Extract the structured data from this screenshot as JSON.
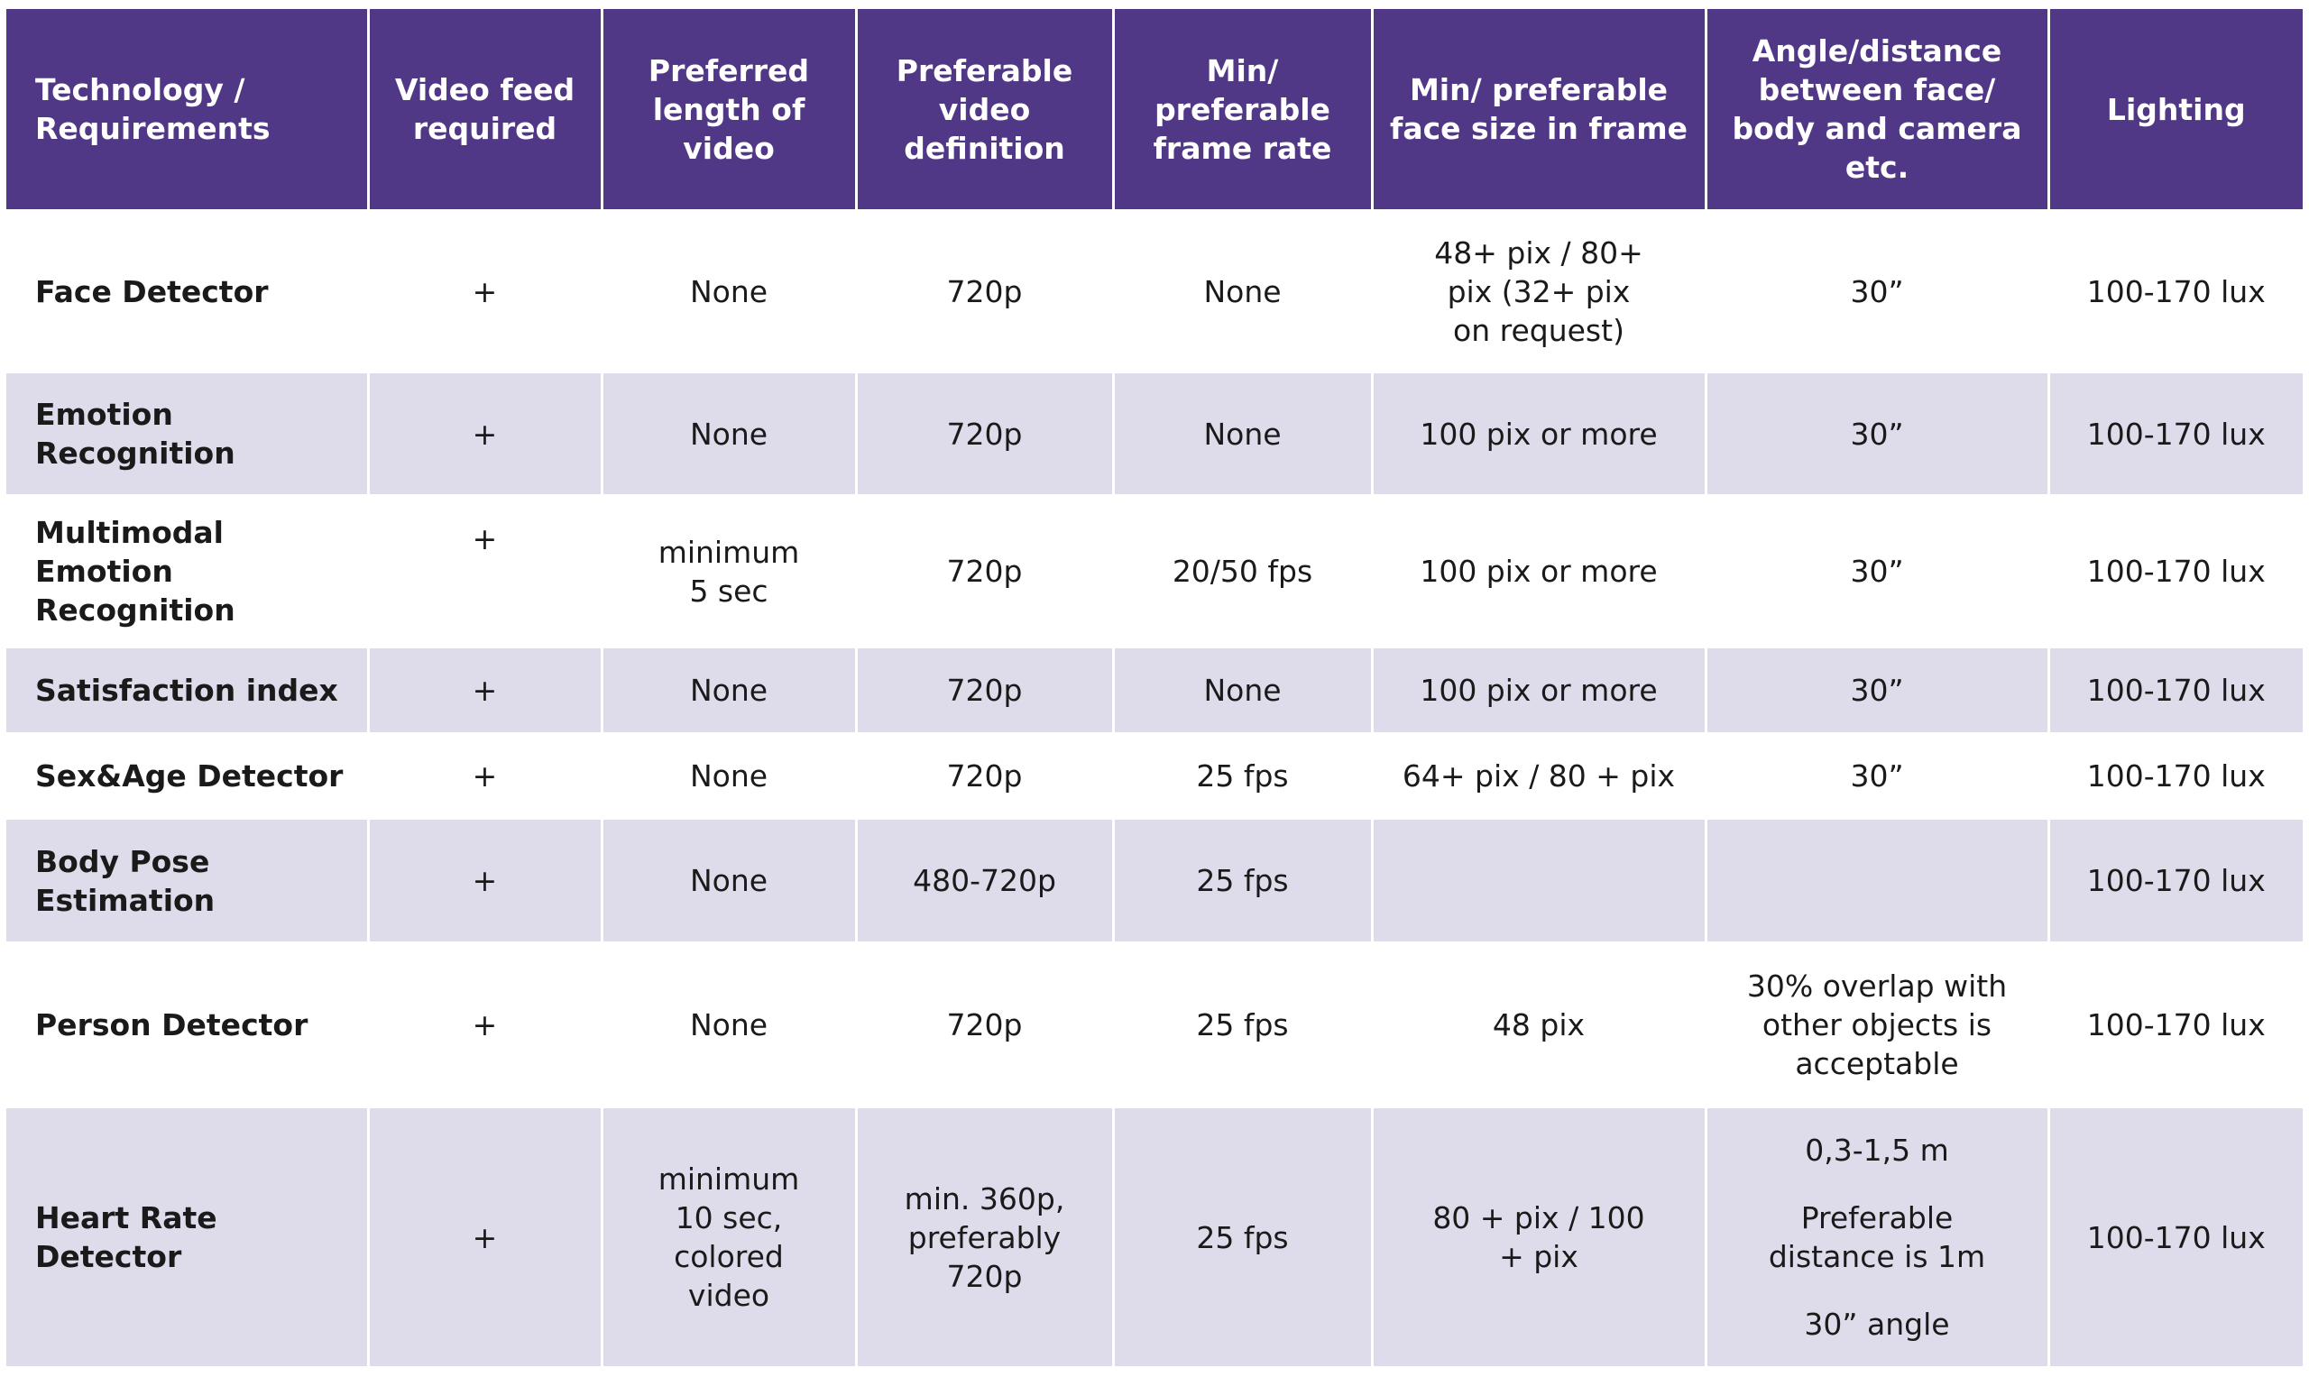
{
  "columns": [
    "Technology / Requirements",
    "Video feed required",
    "Preferred length of video",
    "Preferable video definition",
    "Min/ preferable frame rate",
    "Min/ preferable face size in frame",
    "Angle/distance between face/ body and camera etc.",
    "Lighting"
  ],
  "rows": [
    {
      "technology": "Face Detector",
      "video_feed": "+",
      "length": "None",
      "definition": "720p",
      "frame_rate": "None",
      "face_size": "48+ pix / 80+ pix (32+ pix on request)",
      "angle": "30”",
      "lighting": "100-170 lux"
    },
    {
      "technology": "Emotion Recognition",
      "video_feed": "+",
      "length": "None",
      "definition": "720p",
      "frame_rate": "None",
      "face_size": "100 pix or more",
      "angle": "30”",
      "lighting": "100-170 lux"
    },
    {
      "technology": "Multimodal Emotion Recognition",
      "video_feed": "+",
      "length": "minimum 5 sec",
      "definition": "720p",
      "frame_rate": "20/50 fps",
      "face_size": "100 pix or more",
      "angle": "30”",
      "lighting": "100-170 lux"
    },
    {
      "technology": "Satisfaction index",
      "video_feed": "+",
      "length": "None",
      "definition": "720p",
      "frame_rate": "None",
      "face_size": "100 pix or more",
      "angle": "30”",
      "lighting": "100-170 lux"
    },
    {
      "technology": "Sex&Age Detector",
      "video_feed": "+",
      "length": "None",
      "definition": "720p",
      "frame_rate": "25 fps",
      "face_size": "64+ pix / 80 + pix",
      "angle": "30”",
      "lighting": "100-170 lux"
    },
    {
      "technology": "Body Pose Estimation",
      "video_feed": "+",
      "length": "None",
      "definition": "480-720p",
      "frame_rate": "25 fps",
      "face_size": "",
      "angle": "",
      "lighting": "100-170 lux"
    },
    {
      "technology": "Person Detector",
      "video_feed": "+",
      "length": "None",
      "definition": "720p",
      "frame_rate": "25 fps",
      "face_size": "48 pix",
      "angle": "30% overlap with other objects is acceptable",
      "lighting": "100-170 lux"
    },
    {
      "technology": "Heart Rate Detector",
      "video_feed": "+",
      "length": "minimum 10 sec, colored video",
      "definition": "min. 360p, preferably 720p",
      "frame_rate": "25 fps",
      "face_size": "80 + pix / 100 + pix",
      "angle": "0,3-1,5 m",
      "angle_note": "Preferable distance is 1m",
      "angle_extra": "30” angle",
      "lighting": "100-170 lux"
    }
  ],
  "colors": {
    "header_bg": "#513886",
    "header_text": "#ffffff",
    "band_lilac": "#dedbea",
    "band_white": "#ffffff"
  }
}
